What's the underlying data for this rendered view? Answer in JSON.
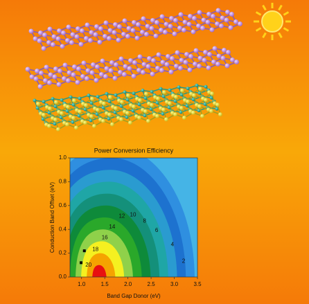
{
  "chart_data": {
    "type": "contour",
    "title": "Power Conversion Efficiency",
    "xlabel": "Band Gap Donor (eV)",
    "ylabel": "Conduction Band Offset (eV)",
    "xlim": [
      0.75,
      3.5
    ],
    "ylim": [
      0,
      1
    ],
    "xticks": [
      {
        "value": 1,
        "label": "1.0"
      },
      1.5,
      {
        "value": 2,
        "label": "2.0"
      },
      2.5,
      {
        "value": 3,
        "label": "3.0"
      },
      3.5
    ],
    "yticks": [
      {
        "value": 0,
        "label": "0.0"
      },
      0.2,
      0.4,
      0.6,
      0.8,
      {
        "value": 1,
        "label": "1.0"
      }
    ],
    "background_color": "#45b4e6",
    "levels": [
      {
        "value": 2,
        "x": 3.2,
        "y": 0.13,
        "color": "#2f8fe0"
      },
      {
        "value": 4,
        "x": 2.96,
        "y": 0.27,
        "color": "#1d72cf"
      },
      {
        "value": 6,
        "x": 2.62,
        "y": 0.39,
        "color": "#2a9bd0"
      },
      {
        "value": 8,
        "x": 2.36,
        "y": 0.47,
        "color": "#1fa6a6"
      },
      {
        "value": 10,
        "x": 2.11,
        "y": 0.52,
        "color": "#14907a"
      },
      {
        "value": 12,
        "x": 1.87,
        "y": 0.51,
        "color": "#0e8a3a"
      },
      {
        "value": 14,
        "x": 1.66,
        "y": 0.42,
        "color": "#2aa82a"
      },
      {
        "value": 16,
        "x": 1.5,
        "y": 0.33,
        "color": "#8fd14a"
      },
      {
        "value": 18,
        "x": 1.3,
        "y": 0.23,
        "color": "#f5f020"
      },
      {
        "value": 20,
        "x": 1.15,
        "y": 0.1,
        "color": "#f5a300"
      }
    ],
    "peak_color": "#e81010",
    "points": {
      "x": [
        1.06,
        0.99
      ],
      "y": [
        0.22,
        0.12
      ],
      "color": "#000000"
    }
  }
}
